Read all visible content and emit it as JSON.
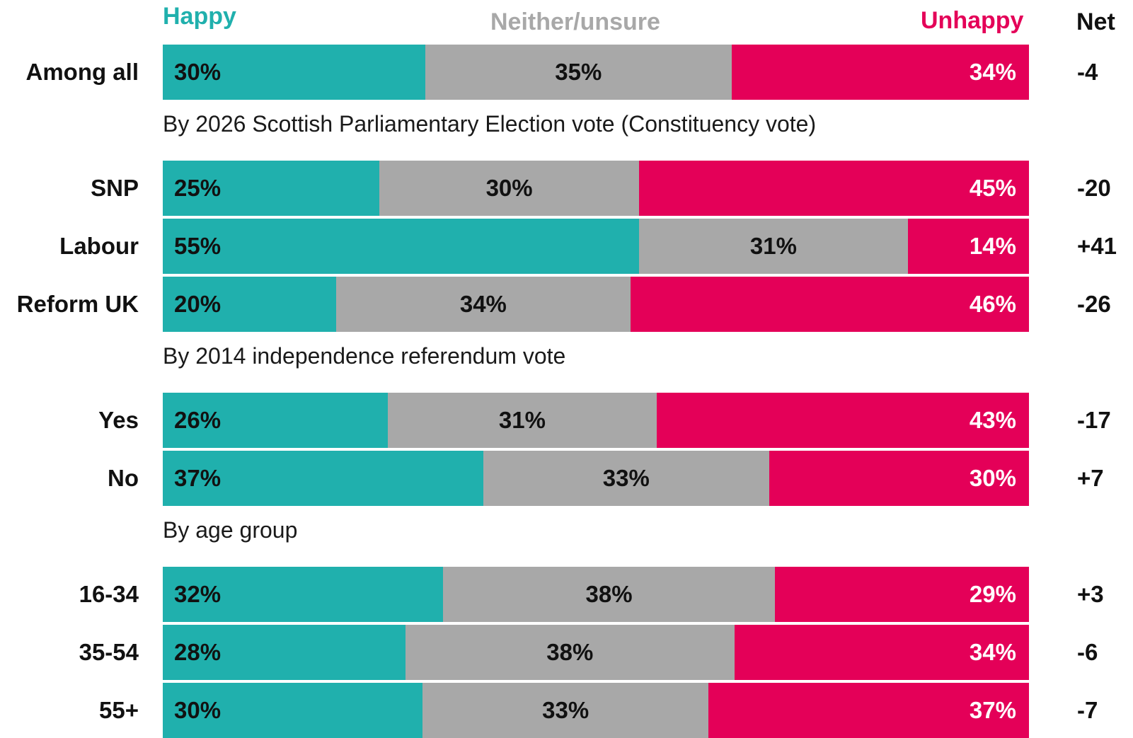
{
  "colors": {
    "happy": "#20b0ad",
    "neither": "#a8a8a8",
    "unhappy": "#e40058",
    "net": "#111111"
  },
  "headers": {
    "happy": "Happy",
    "neither": "Neither/unsure",
    "unhappy": "Unhappy",
    "net": "Net"
  },
  "chart_data": {
    "type": "bar",
    "orientation": "horizontal",
    "stacked": true,
    "series_names": [
      "Happy",
      "Neither/unsure",
      "Unhappy"
    ],
    "groups": [
      {
        "title": "",
        "rows": [
          {
            "label": "Among all",
            "values": [
              30,
              35,
              34
            ],
            "labels": [
              "30%",
              "35%",
              "34%"
            ],
            "net": "-4"
          }
        ]
      },
      {
        "title": "By 2026 Scottish Parliamentary Election vote (Constituency vote)",
        "rows": [
          {
            "label": "SNP",
            "values": [
              25,
              30,
              45
            ],
            "labels": [
              "25%",
              "30%",
              "45%"
            ],
            "net": "-20"
          },
          {
            "label": "Labour",
            "values": [
              55,
              31,
              14
            ],
            "labels": [
              "55%",
              "31%",
              "14%"
            ],
            "net": "+41"
          },
          {
            "label": "Reform UK",
            "values": [
              20,
              34,
              46
            ],
            "labels": [
              "20%",
              "34%",
              "46%"
            ],
            "net": "-26"
          }
        ]
      },
      {
        "title": "By 2014 independence referendum vote",
        "rows": [
          {
            "label": "Yes",
            "values": [
              26,
              31,
              43
            ],
            "labels": [
              "26%",
              "31%",
              "43%"
            ],
            "net": "-17"
          },
          {
            "label": "No",
            "values": [
              37,
              33,
              30
            ],
            "labels": [
              "37%",
              "33%",
              "30%"
            ],
            "net": "+7"
          }
        ]
      },
      {
        "title": "By age group",
        "rows": [
          {
            "label": "16-34",
            "values": [
              32,
              38,
              29
            ],
            "labels": [
              "32%",
              "38%",
              "29%"
            ],
            "net": "+3"
          },
          {
            "label": "35-54",
            "values": [
              28,
              38,
              34
            ],
            "labels": [
              "28%",
              "38%",
              "34%"
            ],
            "net": "-6"
          },
          {
            "label": "55+",
            "values": [
              30,
              33,
              37
            ],
            "labels": [
              "30%",
              "33%",
              "37%"
            ],
            "net": "-7"
          }
        ]
      }
    ]
  }
}
